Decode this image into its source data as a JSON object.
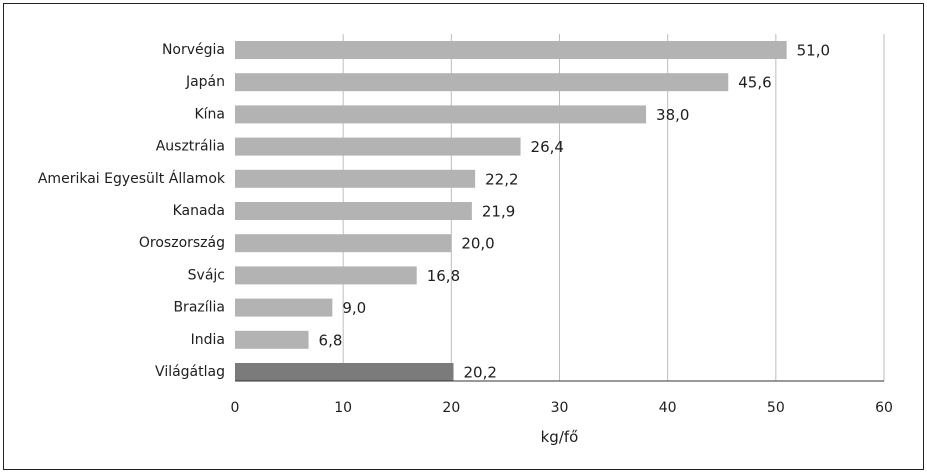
{
  "chart_data": {
    "type": "bar",
    "orientation": "horizontal",
    "categories": [
      "Norvégia",
      "Japán",
      "Kína",
      "Ausztrália",
      "Amerikai Egyesült Államok",
      "Kanada",
      "Oroszország",
      "Svájc",
      "Brazília",
      "India",
      "Világátlag"
    ],
    "values": [
      51.0,
      45.6,
      38.0,
      26.4,
      22.2,
      21.9,
      20.0,
      16.8,
      9.0,
      6.8,
      20.2
    ],
    "value_labels": [
      "51,0",
      "45,6",
      "38,0",
      "26,4",
      "22,2",
      "21,9",
      "20,0",
      "16,8",
      "9,0",
      "6,8",
      "20,2"
    ],
    "xlabel": "kg/fő",
    "xlim": [
      0,
      60
    ],
    "xticks": [
      "0",
      "10",
      "20",
      "30",
      "40",
      "50",
      "60"
    ],
    "grid": "vertical",
    "legend": "none",
    "colors": {
      "bar": "#b3b3b3",
      "highlight": "#7b7b7b"
    },
    "highlight_category": "Világátlag"
  }
}
